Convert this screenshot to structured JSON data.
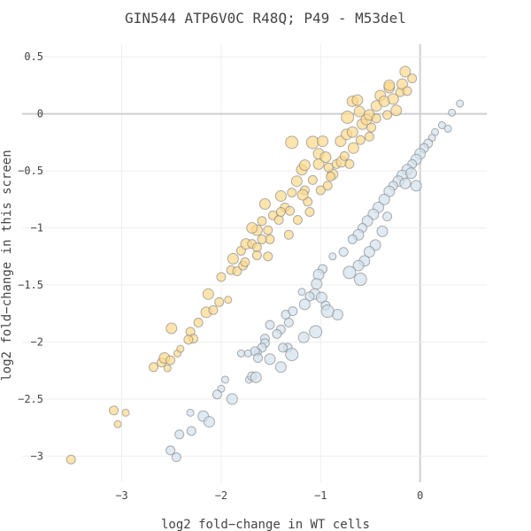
{
  "chart_data": {
    "type": "scatter",
    "title": "GIN544 ATP6V0C R48Q; P49 - M53del",
    "xlabel": "log2 fold−change in WT cells",
    "ylabel": "log2 fold−change in this screen",
    "xlim": [
      -3.69,
      0.67
    ],
    "ylim": [
      -3.23,
      0.61
    ],
    "grid": true,
    "legend": "none",
    "xticks": [
      {
        "v": -3,
        "label": "−3"
      },
      {
        "v": -2,
        "label": "−2"
      },
      {
        "v": -1,
        "label": "−1"
      },
      {
        "v": 0,
        "label": "0"
      }
    ],
    "yticks": [
      {
        "v": 0.5,
        "label": "0.5"
      },
      {
        "v": 0,
        "label": "0"
      },
      {
        "v": -0.5,
        "label": "−0.5"
      },
      {
        "v": -1,
        "label": "−1"
      },
      {
        "v": -1.5,
        "label": "−1.5"
      },
      {
        "v": -2,
        "label": "−2"
      },
      {
        "v": -2.5,
        "label": "−2.5"
      },
      {
        "v": -3,
        "label": "−3"
      }
    ],
    "point_format": [
      "x",
      "y",
      "marker_size"
    ],
    "series": [
      {
        "name": "orange",
        "color": "#fdd98a",
        "points": [
          [
            -3.51,
            -3.03,
            5
          ],
          [
            -3.08,
            -2.6,
            5
          ],
          [
            -2.96,
            -2.62,
            4
          ],
          [
            -3.04,
            -2.72,
            4
          ],
          [
            -2.68,
            -2.22,
            5
          ],
          [
            -2.6,
            -2.18,
            5
          ],
          [
            -2.54,
            -2.23,
            4
          ],
          [
            -2.57,
            -2.14,
            6
          ],
          [
            -2.51,
            -2.16,
            5
          ],
          [
            -2.44,
            -2.1,
            4
          ],
          [
            -2.41,
            -2.06,
            4
          ],
          [
            -2.5,
            -1.88,
            6
          ],
          [
            -2.31,
            -1.91,
            5
          ],
          [
            -2.28,
            -1.97,
            5
          ],
          [
            -2.33,
            -1.98,
            5
          ],
          [
            -2.23,
            -1.83,
            5
          ],
          [
            -2.15,
            -1.74,
            6
          ],
          [
            -2.08,
            -1.72,
            5
          ],
          [
            -2.13,
            -1.58,
            6
          ],
          [
            -1.93,
            -1.63,
            4
          ],
          [
            -2.02,
            -1.65,
            5
          ],
          [
            -2.0,
            -1.43,
            5
          ],
          [
            -1.9,
            -1.37,
            5
          ],
          [
            -1.88,
            -1.27,
            6
          ],
          [
            -1.84,
            -1.38,
            5
          ],
          [
            -1.78,
            -1.33,
            5
          ],
          [
            -1.76,
            -1.3,
            5
          ],
          [
            -1.8,
            -1.2,
            5
          ],
          [
            -1.75,
            -1.14,
            6
          ],
          [
            -1.69,
            -1.14,
            5
          ],
          [
            -1.64,
            -1.17,
            5
          ],
          [
            -1.64,
            -1.02,
            6
          ],
          [
            -1.69,
            -1.0,
            6
          ],
          [
            -1.59,
            -0.94,
            5
          ],
          [
            -1.56,
            -0.79,
            6
          ],
          [
            -1.53,
            -1.02,
            5
          ],
          [
            -1.48,
            -0.89,
            5
          ],
          [
            -1.42,
            -0.93,
            5
          ],
          [
            -1.51,
            -1.1,
            5
          ],
          [
            -1.4,
            -0.72,
            6
          ],
          [
            -1.36,
            -0.82,
            5
          ],
          [
            -1.31,
            -0.85,
            5
          ],
          [
            -1.29,
            -0.69,
            5
          ],
          [
            -1.4,
            -0.86,
            5
          ],
          [
            -1.32,
            -1.06,
            5
          ],
          [
            -1.23,
            -0.93,
            5
          ],
          [
            -1.24,
            -0.59,
            6
          ],
          [
            -1.19,
            -0.49,
            6
          ],
          [
            -1.16,
            -0.45,
            6
          ],
          [
            -1.16,
            -0.67,
            5
          ],
          [
            -1.08,
            -0.58,
            5
          ],
          [
            -1.13,
            -0.77,
            5
          ],
          [
            -1.29,
            -0.25,
            7
          ],
          [
            -1.08,
            -0.25,
            7
          ],
          [
            -0.98,
            -0.24,
            6
          ],
          [
            -1.02,
            -0.44,
            6
          ],
          [
            -1.02,
            -0.35,
            6
          ],
          [
            -0.93,
            -0.63,
            5
          ],
          [
            -0.88,
            -0.53,
            6
          ],
          [
            -0.95,
            -0.38,
            6
          ],
          [
            -0.92,
            -0.47,
            5
          ],
          [
            -0.84,
            -0.44,
            5
          ],
          [
            -0.79,
            -0.42,
            6
          ],
          [
            -0.76,
            -0.37,
            5
          ],
          [
            -0.8,
            -0.24,
            6
          ],
          [
            -0.74,
            -0.18,
            6
          ],
          [
            -0.68,
            -0.16,
            6
          ],
          [
            -0.73,
            -0.03,
            7
          ],
          [
            -0.68,
            0.11,
            6
          ],
          [
            -0.63,
            0.12,
            6
          ],
          [
            -0.61,
            0.02,
            6
          ],
          [
            -0.58,
            -0.09,
            6
          ],
          [
            -0.54,
            -0.05,
            6
          ],
          [
            -0.51,
            -0.01,
            6
          ],
          [
            -0.49,
            -0.12,
            5
          ],
          [
            -0.44,
            0.07,
            6
          ],
          [
            -0.4,
            0.16,
            6
          ],
          [
            -0.36,
            0.11,
            6
          ],
          [
            -0.31,
            0.23,
            6
          ],
          [
            -0.27,
            0.13,
            6
          ],
          [
            -0.24,
            0.03,
            6
          ],
          [
            -0.2,
            0.19,
            5
          ],
          [
            -0.31,
            0.25,
            6
          ],
          [
            -0.18,
            0.26,
            6
          ],
          [
            -0.15,
            0.37,
            6
          ],
          [
            -0.08,
            0.31,
            5
          ],
          [
            -0.13,
            0.2,
            5
          ],
          [
            -0.33,
            -0.01,
            5
          ],
          [
            -0.44,
            -0.04,
            5
          ],
          [
            -0.51,
            -0.2,
            5
          ],
          [
            -0.6,
            -0.23,
            5
          ],
          [
            -0.67,
            -0.3,
            6
          ],
          [
            -0.71,
            -0.44,
            5
          ],
          [
            -0.9,
            -0.55,
            5
          ],
          [
            -1.0,
            -0.67,
            5
          ],
          [
            -1.18,
            -0.71,
            6
          ],
          [
            -1.11,
            -0.86,
            5
          ],
          [
            -1.53,
            -1.25,
            5
          ],
          [
            -1.59,
            -1.1,
            5
          ],
          [
            -1.64,
            -1.24,
            5
          ]
        ]
      },
      {
        "name": "blue",
        "color": "#d2e1ee",
        "points": [
          [
            0.4,
            0.09,
            4
          ],
          [
            0.32,
            0.01,
            4
          ],
          [
            0.22,
            -0.1,
            4
          ],
          [
            0.28,
            -0.13,
            4
          ],
          [
            0.15,
            -0.16,
            4
          ],
          [
            0.12,
            -0.21,
            4
          ],
          [
            0.08,
            -0.26,
            5
          ],
          [
            0.04,
            -0.3,
            5
          ],
          [
            0.0,
            -0.35,
            6
          ],
          [
            -0.04,
            -0.4,
            6
          ],
          [
            -0.08,
            -0.44,
            5
          ],
          [
            -0.13,
            -0.49,
            6
          ],
          [
            -0.18,
            -0.54,
            6
          ],
          [
            -0.22,
            -0.59,
            6
          ],
          [
            -0.27,
            -0.63,
            5
          ],
          [
            -0.15,
            -0.61,
            6
          ],
          [
            -0.04,
            -0.63,
            6
          ],
          [
            -0.09,
            -0.52,
            6
          ],
          [
            -0.31,
            -0.68,
            6
          ],
          [
            -0.36,
            -0.75,
            6
          ],
          [
            -0.42,
            -0.82,
            6
          ],
          [
            -0.47,
            -0.88,
            6
          ],
          [
            -0.33,
            -0.9,
            5
          ],
          [
            -0.53,
            -0.94,
            6
          ],
          [
            -0.58,
            -1.0,
            5
          ],
          [
            -0.62,
            -1.06,
            6
          ],
          [
            -0.68,
            -1.1,
            5
          ],
          [
            -0.38,
            -1.03,
            6
          ],
          [
            -0.45,
            -1.15,
            6
          ],
          [
            -0.51,
            -1.21,
            6
          ],
          [
            -0.56,
            -1.29,
            6
          ],
          [
            -0.62,
            -1.33,
            6
          ],
          [
            -0.71,
            -1.39,
            7
          ],
          [
            -0.6,
            -1.45,
            7
          ],
          [
            -0.77,
            -1.21,
            5
          ],
          [
            -0.88,
            -1.25,
            4
          ],
          [
            -0.98,
            -1.36,
            5
          ],
          [
            -1.02,
            -1.41,
            6
          ],
          [
            -1.04,
            -1.49,
            6
          ],
          [
            -1.06,
            -1.58,
            6
          ],
          [
            -0.99,
            -1.61,
            6
          ],
          [
            -1.19,
            -1.56,
            4
          ],
          [
            -1.11,
            -1.6,
            5
          ],
          [
            -0.95,
            -1.68,
            5
          ],
          [
            -1.16,
            -1.67,
            6
          ],
          [
            -0.83,
            -1.76,
            6
          ],
          [
            -0.93,
            -1.73,
            7
          ],
          [
            -1.35,
            -1.76,
            5
          ],
          [
            -1.32,
            -1.83,
            5
          ],
          [
            -1.28,
            -1.73,
            5
          ],
          [
            -1.4,
            -1.89,
            5
          ],
          [
            -1.44,
            -1.93,
            5
          ],
          [
            -1.51,
            -1.85,
            5
          ],
          [
            -1.33,
            -2.05,
            5
          ],
          [
            -1.29,
            -2.11,
            7
          ],
          [
            -1.38,
            -2.05,
            5
          ],
          [
            -1.17,
            -1.96,
            6
          ],
          [
            -1.05,
            -1.91,
            7
          ],
          [
            -1.56,
            -1.97,
            5
          ],
          [
            -1.56,
            -2.01,
            5
          ],
          [
            -1.59,
            -2.05,
            5
          ],
          [
            -1.63,
            -2.09,
            4
          ],
          [
            -1.66,
            -2.08,
            5
          ],
          [
            -1.73,
            -2.1,
            4
          ],
          [
            -1.8,
            -2.1,
            4
          ],
          [
            -1.51,
            -2.15,
            6
          ],
          [
            -1.63,
            -2.14,
            5
          ],
          [
            -1.4,
            -2.22,
            6
          ],
          [
            -1.72,
            -2.33,
            4
          ],
          [
            -1.69,
            -2.3,
            5
          ],
          [
            -1.65,
            -2.31,
            6
          ],
          [
            -1.96,
            -2.33,
            4
          ],
          [
            -2.0,
            -2.41,
            4
          ],
          [
            -2.04,
            -2.46,
            5
          ],
          [
            -1.89,
            -2.5,
            6
          ],
          [
            -2.31,
            -2.62,
            4
          ],
          [
            -2.18,
            -2.65,
            6
          ],
          [
            -2.12,
            -2.7,
            6
          ],
          [
            -2.42,
            -2.81,
            5
          ],
          [
            -2.3,
            -2.78,
            5
          ],
          [
            -2.51,
            -2.95,
            5
          ],
          [
            -2.45,
            -3.01,
            5
          ]
        ]
      }
    ]
  }
}
